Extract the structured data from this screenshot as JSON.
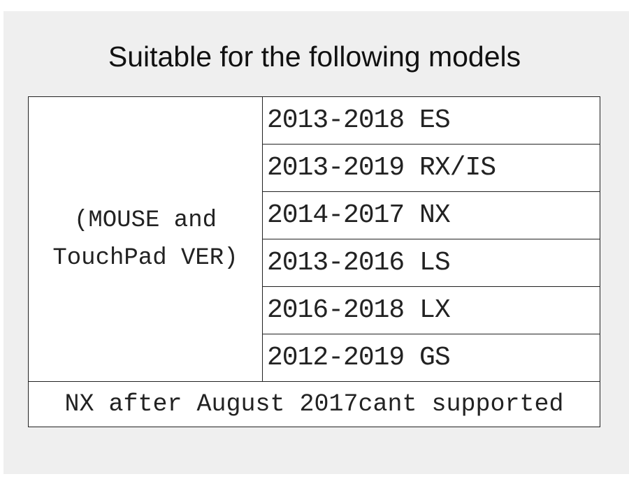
{
  "title": "Suitable for the following models",
  "table": {
    "label": "(MOUSE and TouchPad VER)",
    "models": [
      "2013-2018 ES",
      "2013-2019 RX/IS",
      "2014-2017 NX",
      "2013-2016 LS",
      "2016-2018 LX",
      "2012-2019 GS"
    ],
    "footer": "NX after August 2017cant supported"
  }
}
